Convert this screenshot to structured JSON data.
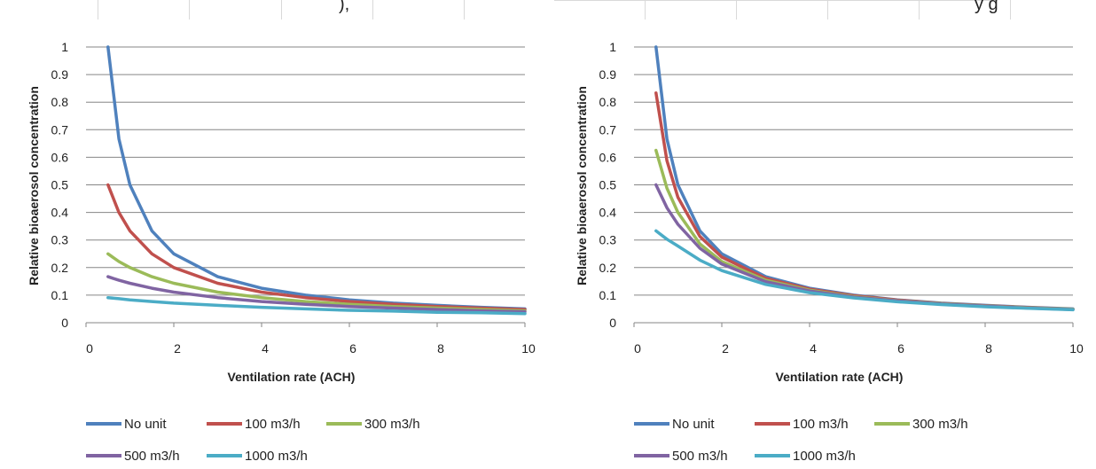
{
  "header_fragments": {
    "left": "),",
    "right": "y g"
  },
  "chart_data": [
    {
      "type": "line",
      "xlabel": "Ventilation rate (ACH)",
      "ylabel": "Relative bioaerosol concentration",
      "xlim": [
        0,
        10
      ],
      "ylim": [
        0,
        1
      ],
      "x_ticks": [
        "0",
        "2",
        "4",
        "6",
        "8",
        "10"
      ],
      "y_ticks": [
        "0",
        "0.1",
        "0.2",
        "0.3",
        "0.4",
        "0.5",
        "0.6",
        "0.7",
        "0.8",
        "0.9",
        "1"
      ],
      "grid": true,
      "legend_position": "bottom",
      "x": [
        0.5,
        0.75,
        1,
        1.5,
        2,
        3,
        4,
        5,
        6,
        7,
        8,
        9,
        10
      ],
      "series": [
        {
          "name": "No unit",
          "color": "#4f81bd",
          "values": [
            1.0,
            0.667,
            0.5,
            0.333,
            0.25,
            0.167,
            0.125,
            0.1,
            0.083,
            0.071,
            0.063,
            0.056,
            0.05
          ]
        },
        {
          "name": "100 m3/h",
          "color": "#c0504d",
          "values": [
            0.5,
            0.4,
            0.333,
            0.25,
            0.2,
            0.143,
            0.111,
            0.091,
            0.077,
            0.067,
            0.059,
            0.053,
            0.048
          ]
        },
        {
          "name": "300 m3/h",
          "color": "#9bbb59",
          "values": [
            0.25,
            0.222,
            0.2,
            0.167,
            0.143,
            0.111,
            0.091,
            0.077,
            0.067,
            0.059,
            0.053,
            0.048,
            0.043
          ]
        },
        {
          "name": "500 m3/h",
          "color": "#8064a2",
          "values": [
            0.167,
            0.154,
            0.143,
            0.125,
            0.111,
            0.091,
            0.077,
            0.067,
            0.059,
            0.053,
            0.048,
            0.043,
            0.04
          ]
        },
        {
          "name": "1000 m3/h",
          "color": "#4bacc6",
          "values": [
            0.091,
            0.087,
            0.083,
            0.077,
            0.071,
            0.063,
            0.056,
            0.05,
            0.045,
            0.042,
            0.038,
            0.036,
            0.033
          ]
        }
      ]
    },
    {
      "type": "line",
      "xlabel": "Ventilation rate (ACH)",
      "ylabel": "Relative bioaerosol concentration",
      "xlim": [
        0,
        10
      ],
      "ylim": [
        0,
        1
      ],
      "x_ticks": [
        "0",
        "2",
        "4",
        "6",
        "8",
        "10"
      ],
      "y_ticks": [
        "0",
        "0.1",
        "0.2",
        "0.3",
        "0.4",
        "0.5",
        "0.6",
        "0.7",
        "0.8",
        "0.9",
        "1"
      ],
      "grid": true,
      "legend_position": "bottom",
      "x": [
        0.5,
        0.75,
        1,
        1.5,
        2,
        3,
        4,
        5,
        6,
        7,
        8,
        9,
        10
      ],
      "series": [
        {
          "name": "No unit",
          "color": "#4f81bd",
          "values": [
            1.0,
            0.667,
            0.5,
            0.333,
            0.25,
            0.167,
            0.125,
            0.1,
            0.083,
            0.071,
            0.063,
            0.056,
            0.05
          ]
        },
        {
          "name": "100 m3/h",
          "color": "#c0504d",
          "values": [
            0.833,
            0.588,
            0.455,
            0.313,
            0.238,
            0.161,
            0.122,
            0.098,
            0.082,
            0.07,
            0.062,
            0.055,
            0.049
          ]
        },
        {
          "name": "300 m3/h",
          "color": "#9bbb59",
          "values": [
            0.625,
            0.488,
            0.4,
            0.286,
            0.222,
            0.154,
            0.118,
            0.095,
            0.08,
            0.069,
            0.061,
            0.054,
            0.049
          ]
        },
        {
          "name": "500 m3/h",
          "color": "#8064a2",
          "values": [
            0.5,
            0.417,
            0.357,
            0.27,
            0.213,
            0.149,
            0.115,
            0.093,
            0.079,
            0.068,
            0.06,
            0.053,
            0.048
          ]
        },
        {
          "name": "1000 m3/h",
          "color": "#4bacc6",
          "values": [
            0.333,
            0.303,
            0.278,
            0.227,
            0.189,
            0.139,
            0.109,
            0.09,
            0.076,
            0.066,
            0.058,
            0.052,
            0.047
          ]
        }
      ]
    }
  ]
}
